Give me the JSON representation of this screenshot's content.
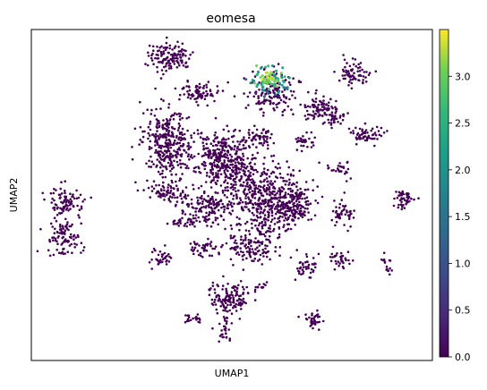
{
  "chart_data": {
    "type": "scatter",
    "title": "eomesa",
    "xlabel": "UMAP1",
    "ylabel": "UMAP2",
    "colorbar": {
      "colormap": "viridis",
      "range": [
        0.0,
        3.5
      ],
      "ticks": [
        0.0,
        0.5,
        1.0,
        1.5,
        2.0,
        2.5,
        3.0
      ],
      "tick_labels": [
        "0.0",
        "0.5",
        "1.0",
        "1.5",
        "2.0",
        "2.5",
        "3.0"
      ]
    },
    "show_axis_ticks": false,
    "grid": false,
    "points_count_estimate": 4000,
    "point_colors": {
      "low": "#440154",
      "high": "#fde725"
    },
    "clusters_with_expression": [
      {
        "description": "top-center cluster with high eomesa expression",
        "value_range": [
          0.5,
          3.4
        ]
      }
    ]
  }
}
